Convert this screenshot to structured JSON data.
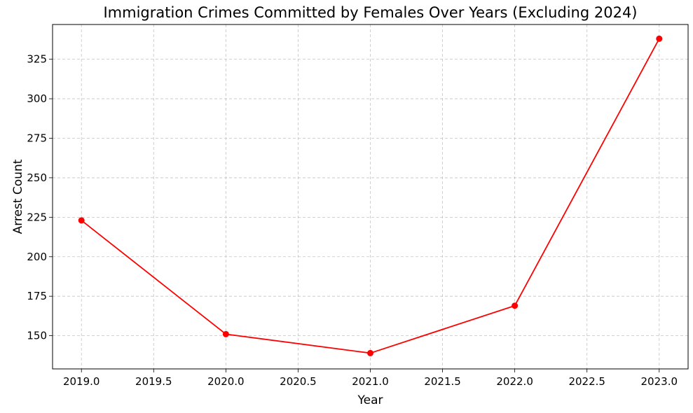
{
  "chart_data": {
    "type": "line",
    "title": "Immigration Crimes Committed by Females Over Years (Excluding 2024)",
    "xlabel": "Year",
    "ylabel": "Arrest Count",
    "x": [
      2019,
      2020,
      2021,
      2022,
      2023
    ],
    "series": [
      {
        "values": [
          223,
          151,
          139,
          169,
          338
        ],
        "color": "#ff0000",
        "marker": "circle"
      }
    ],
    "xlim": [
      2018.8,
      2023.2
    ],
    "ylim": [
      129,
      347
    ],
    "xticks": [
      2019.0,
      2019.5,
      2020.0,
      2020.5,
      2021.0,
      2021.5,
      2022.0,
      2022.5,
      2023.0
    ],
    "xtick_labels": [
      "2019.0",
      "2019.5",
      "2020.0",
      "2020.5",
      "2021.0",
      "2021.5",
      "2022.0",
      "2022.5",
      "2023.0"
    ],
    "yticks": [
      150,
      175,
      200,
      225,
      250,
      275,
      300,
      325
    ],
    "ytick_labels": [
      "150",
      "175",
      "200",
      "225",
      "250",
      "275",
      "300",
      "325"
    ],
    "grid": true,
    "legend": "none"
  }
}
